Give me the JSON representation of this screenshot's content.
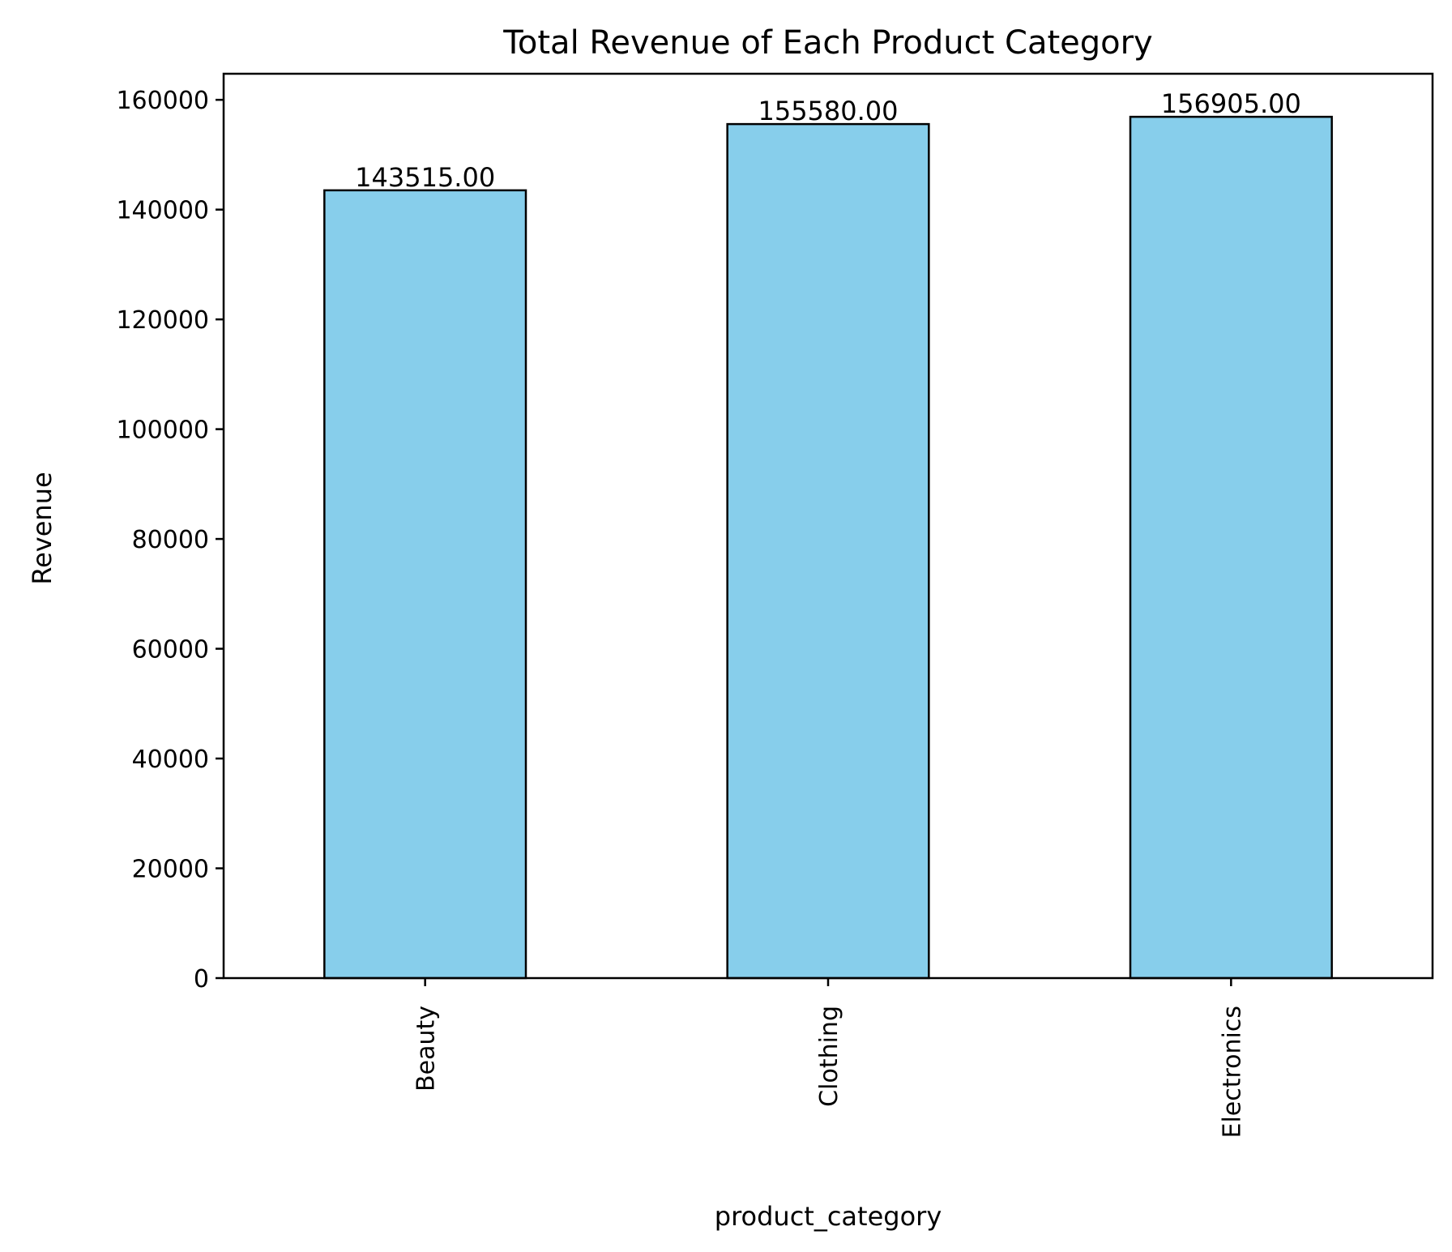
{
  "chart_data": {
    "type": "bar",
    "title": "Total Revenue of Each Product Category",
    "xlabel": "product_category",
    "ylabel": "Revenue",
    "categories": [
      "Beauty",
      "Clothing",
      "Electronics"
    ],
    "values": [
      143515.0,
      155580.0,
      156905.0
    ],
    "data_labels": [
      "143515.00",
      "155580.00",
      "156905.00"
    ],
    "ylim": [
      0,
      164750
    ],
    "yticks": [
      0,
      20000,
      40000,
      60000,
      80000,
      100000,
      120000,
      140000,
      160000
    ],
    "ytick_labels": [
      "0",
      "20000",
      "40000",
      "60000",
      "80000",
      "100000",
      "120000",
      "140000",
      "160000"
    ],
    "grid": false,
    "legend": "none",
    "bar_color": "#87CEEB",
    "edge_color": "#000000"
  }
}
